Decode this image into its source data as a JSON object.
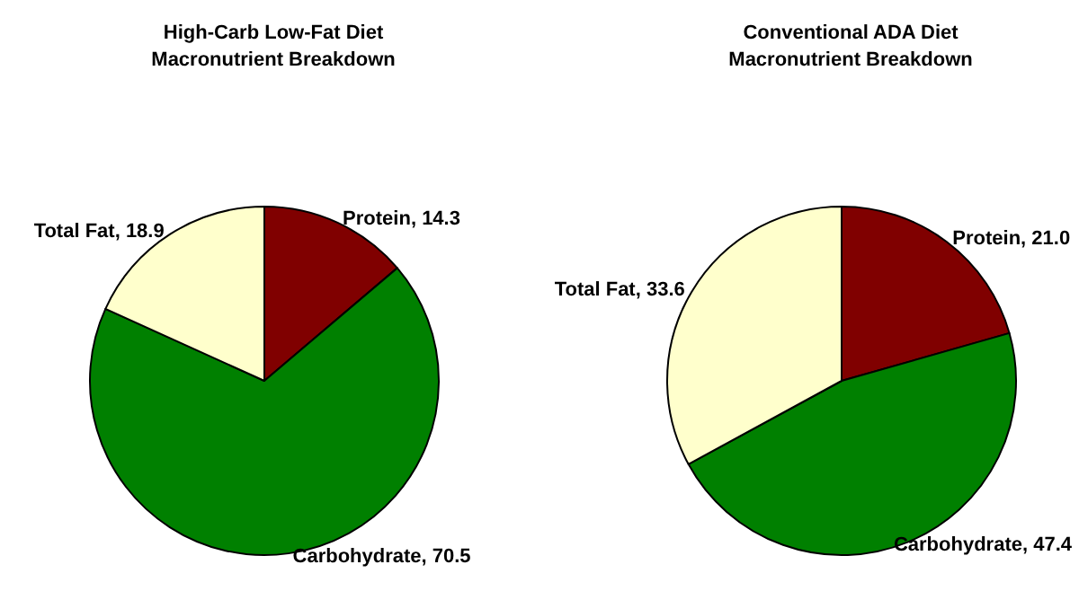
{
  "chart_data": [
    {
      "type": "pie",
      "title": "High-Carb Low-Fat Diet\nMacronutrient Breakdown",
      "categories": [
        "Protein",
        "Carbohydrate",
        "Total Fat"
      ],
      "values": [
        14.3,
        70.5,
        18.9
      ],
      "value_labels": [
        "14.3",
        "70.5",
        "18.9"
      ],
      "colors": [
        "#800000",
        "#008000",
        "#ffffcc"
      ],
      "legend": false
    },
    {
      "type": "pie",
      "title": "Conventional ADA Diet\nMacronutrient Breakdown",
      "categories": [
        "Protein",
        "Carbohydrate",
        "Total Fat"
      ],
      "values": [
        21.0,
        47.4,
        33.6
      ],
      "value_labels": [
        "21.0",
        "47.4",
        "33.6"
      ],
      "colors": [
        "#800000",
        "#008000",
        "#ffffcc"
      ],
      "legend": false
    }
  ]
}
